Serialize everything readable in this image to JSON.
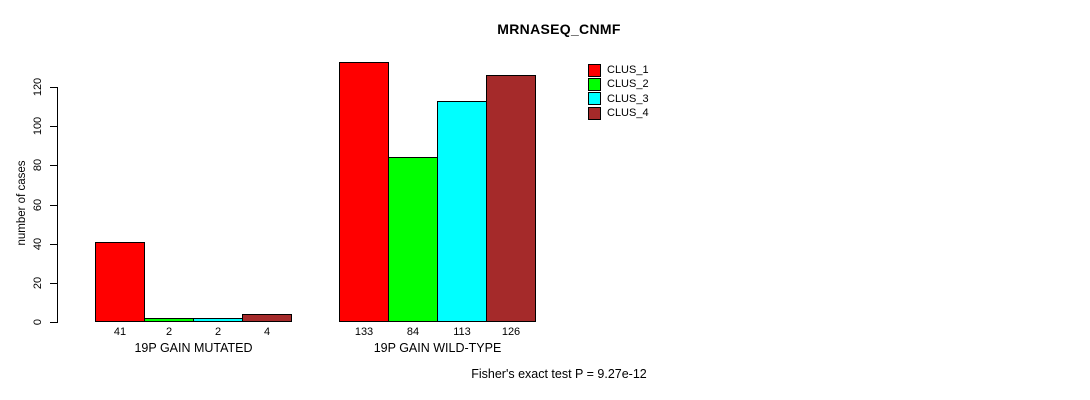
{
  "title": "MRNASEQ_CNMF",
  "y_axis_label": "number of cases",
  "footer_note": "Fisher's exact test P = 9.27e-12",
  "colors": {
    "background": "#FFFFFF",
    "axis": "#000000",
    "text": "#000000",
    "clus_1": "#FF0000",
    "clus_2": "#00FF00",
    "clus_3": "#00FFFF",
    "clus_4": "#A52A2A"
  },
  "chart_data": {
    "type": "bar",
    "title": "MRNASEQ_CNMF",
    "xlabel": "",
    "ylabel": "number of cases",
    "categories": [
      "19P GAIN MUTATED",
      "19P GAIN WILD-TYPE"
    ],
    "series": [
      {
        "name": "CLUS_1",
        "color": "#FF0000",
        "values": [
          41,
          133
        ]
      },
      {
        "name": "CLUS_2",
        "color": "#00FF00",
        "values": [
          2,
          84
        ]
      },
      {
        "name": "CLUS_3",
        "color": "#00FFFF",
        "values": [
          2,
          113
        ]
      },
      {
        "name": "CLUS_4",
        "color": "#A52A2A",
        "values": [
          4,
          126
        ]
      }
    ],
    "bar_value_labels": [
      [
        41,
        2,
        2,
        4
      ],
      [
        133,
        84,
        113,
        126
      ]
    ],
    "yticks": [
      0,
      20,
      40,
      60,
      80,
      100,
      120
    ],
    "ylim": [
      0,
      133
    ],
    "grid": false,
    "legend_position": "top-right-inside",
    "legend_entries": [
      "CLUS_1",
      "CLUS_2",
      "CLUS_3",
      "CLUS_4"
    ],
    "annotation": "Fisher's exact test P = 9.27e-12"
  }
}
